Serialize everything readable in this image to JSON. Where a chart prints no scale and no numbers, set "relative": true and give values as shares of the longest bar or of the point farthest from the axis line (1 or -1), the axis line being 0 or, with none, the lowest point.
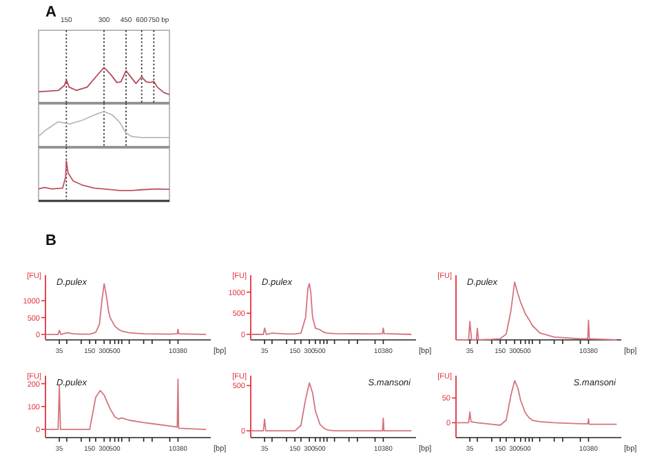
{
  "chart_data": [
    {
      "type": "line",
      "title": "A",
      "xlabel": "bp",
      "relative": true,
      "log": "x",
      "xlim": [
        90,
        1000
      ],
      "xticks": [
        150,
        300,
        450,
        600,
        750
      ],
      "tick_labels": "x",
      "x": [
        90,
        100,
        130,
        145,
        150,
        158,
        180,
        220,
        260,
        300,
        340,
        380,
        410,
        450,
        500,
        540,
        600,
        650,
        700,
        750,
        800,
        900,
        1000
      ],
      "series": [
        {
          "color": "#b5485a",
          "values": [
            0.32,
            0.33,
            0.36,
            0.5,
            0.65,
            0.45,
            0.36,
            0.45,
            0.75,
            1,
            0.8,
            0.58,
            0.6,
            0.91,
            0.7,
            0.55,
            0.74,
            0.6,
            0.58,
            0.61,
            0.45,
            0.3,
            0.24
          ]
        }
      ],
      "ref_lines": [
        {
          "axis": "x",
          "value": 150,
          "line_style": "dotted"
        },
        {
          "axis": "x",
          "value": 300,
          "line_style": "dotted"
        },
        {
          "axis": "x",
          "value": 450,
          "line_style": "dotted"
        },
        {
          "axis": "x",
          "value": 600,
          "line_style": "dotted"
        },
        {
          "axis": "x",
          "value": 750,
          "line_style": "dotted"
        }
      ]
    },
    {
      "type": "line",
      "relative": true,
      "log": "x",
      "xlim": [
        90,
        1000
      ],
      "tick_labels": false,
      "x": [
        90,
        100,
        129,
        160,
        200,
        250,
        300,
        350,
        400,
        450,
        500,
        600,
        800,
        1000
      ],
      "series": [
        {
          "color": "#b8b8b8",
          "values": [
            0.3,
            0.45,
            0.71,
            0.65,
            0.75,
            0.9,
            1,
            0.9,
            0.7,
            0.4,
            0.3,
            0.27,
            0.27,
            0.27
          ]
        }
      ],
      "ref_lines": [
        {
          "axis": "x",
          "value": 150,
          "line_style": "dotted"
        },
        {
          "axis": "x",
          "value": 300,
          "line_style": "dotted"
        },
        {
          "axis": "x",
          "value": 450,
          "line_style": "dotted"
        }
      ]
    },
    {
      "type": "line",
      "relative": true,
      "log": "x",
      "xlim": [
        90,
        1000
      ],
      "tick_labels": false,
      "x": [
        90,
        100,
        115,
        140,
        148,
        150,
        155,
        170,
        200,
        250,
        300,
        400,
        500,
        600,
        800,
        1000
      ],
      "series": [
        {
          "color": "#c05060",
          "values": [
            0.3,
            0.34,
            0.3,
            0.32,
            0.6,
            1,
            0.7,
            0.5,
            0.4,
            0.32,
            0.3,
            0.26,
            0.26,
            0.28,
            0.3,
            0.29
          ]
        }
      ],
      "ref_lines": [
        {
          "axis": "x",
          "value": 150,
          "line_style": "dotted"
        }
      ]
    },
    {
      "type": "line",
      "title": "B",
      "xlabel": "[bp]",
      "ylabel": "[FU]",
      "log": "x",
      "xlim": [
        18,
        50000
      ],
      "ylim": [
        -160,
        1750
      ],
      "yticks": [
        0,
        500,
        1000
      ],
      "xticks": [
        35,
        {
          "value": 50,
          "label": null
        },
        {
          "value": 100,
          "label": null
        },
        150,
        {
          "value": 200,
          "label": null
        },
        300,
        {
          "value": 400,
          "label": null
        },
        500,
        {
          "value": 600,
          "label": null
        },
        {
          "value": 700,
          "label": null
        },
        {
          "value": 1000,
          "label": null
        },
        {
          "value": 2000,
          "label": null
        },
        {
          "value": 3000,
          "label": null
        },
        {
          "value": 7000,
          "label": null
        },
        10380
      ],
      "x": [
        18,
        33,
        35,
        38,
        50,
        70,
        100,
        150,
        200,
        240,
        270,
        300,
        330,
        370,
        400,
        500,
        600,
        700,
        1000,
        2000,
        7000,
        10000,
        10380,
        10800,
        40000
      ],
      "series": [
        {
          "name": "D.pulex",
          "color": "#d4737d",
          "values": [
            0,
            0,
            120,
            0,
            50,
            20,
            10,
            10,
            60,
            300,
            1000,
            1500,
            1200,
            700,
            500,
            250,
            150,
            100,
            50,
            20,
            10,
            20,
            150,
            20,
            0
          ]
        }
      ]
    },
    {
      "type": "line",
      "xlabel": "[bp]",
      "ylabel": "[FU]",
      "log": "x",
      "xlim": [
        18,
        50000
      ],
      "ylim": [
        -130,
        1400
      ],
      "yticks": [
        0,
        500,
        1000
      ],
      "xticks": [
        35,
        {
          "value": 50,
          "label": null
        },
        {
          "value": 100,
          "label": null
        },
        150,
        {
          "value": 200,
          "label": null
        },
        300,
        {
          "value": 400,
          "label": null
        },
        500,
        {
          "value": 600,
          "label": null
        },
        {
          "value": 700,
          "label": null
        },
        {
          "value": 1000,
          "label": null
        },
        {
          "value": 2000,
          "label": null
        },
        {
          "value": 3000,
          "label": null
        },
        {
          "value": 7000,
          "label": null
        },
        10380
      ],
      "x": [
        18,
        33,
        35,
        38,
        50,
        100,
        150,
        200,
        250,
        280,
        300,
        320,
        350,
        400,
        450,
        500,
        600,
        700,
        1000,
        7000,
        10000,
        10380,
        10800,
        40000
      ],
      "series": [
        {
          "name": "D.pulex",
          "color": "#d4737d",
          "values": [
            0,
            0,
            150,
            0,
            30,
            10,
            10,
            30,
            400,
            1100,
            1200,
            1000,
            400,
            150,
            130,
            110,
            50,
            30,
            20,
            10,
            20,
            150,
            20,
            0
          ]
        }
      ]
    },
    {
      "type": "line",
      "xlabel": "[bp]",
      "ylabel": "[FU]",
      "relative": true,
      "log": "x",
      "xlim": [
        18,
        50000
      ],
      "xticks": [
        35,
        {
          "value": 50,
          "label": null
        },
        {
          "value": 100,
          "label": null
        },
        150,
        {
          "value": 200,
          "label": null
        },
        300,
        {
          "value": 400,
          "label": null
        },
        500,
        {
          "value": 600,
          "label": null
        },
        {
          "value": 700,
          "label": null
        },
        {
          "value": 1000,
          "label": null
        },
        {
          "value": 2000,
          "label": null
        },
        {
          "value": 3000,
          "label": null
        },
        {
          "value": 7000,
          "label": null
        },
        10380
      ],
      "x": [
        18,
        33,
        35,
        38,
        48,
        50,
        53,
        100,
        150,
        200,
        250,
        300,
        350,
        400,
        500,
        600,
        700,
        1000,
        2000,
        7000,
        10000,
        10380,
        10800,
        40000
      ],
      "series": [
        {
          "name": "D.pulex",
          "color": "#d4737d",
          "values": [
            0,
            0,
            0.32,
            0,
            0,
            0.2,
            0,
            0.01,
            0.02,
            0.1,
            0.5,
            1,
            0.8,
            0.65,
            0.45,
            0.35,
            0.25,
            0.12,
            0.05,
            0.02,
            0.02,
            0.34,
            0.02,
            0
          ]
        }
      ]
    },
    {
      "type": "line",
      "xlabel": "[bp]",
      "ylabel": "[FU]",
      "log": "x",
      "xlim": [
        18,
        50000
      ],
      "ylim": [
        -36,
        235
      ],
      "yticks": [
        0,
        100,
        200
      ],
      "xticks": [
        35,
        {
          "value": 50,
          "label": null
        },
        {
          "value": 100,
          "label": null
        },
        150,
        {
          "value": 200,
          "label": null
        },
        300,
        {
          "value": 400,
          "label": null
        },
        500,
        {
          "value": 600,
          "label": null
        },
        {
          "value": 700,
          "label": null
        },
        {
          "value": 1000,
          "label": null
        },
        {
          "value": 2000,
          "label": null
        },
        {
          "value": 3000,
          "label": null
        },
        {
          "value": 7000,
          "label": null
        },
        10380
      ],
      "x": [
        18,
        33,
        35,
        37,
        100,
        150,
        170,
        200,
        250,
        300,
        400,
        500,
        600,
        700,
        1000,
        2000,
        3000,
        7000,
        10000,
        10380,
        10700,
        40000
      ],
      "series": [
        {
          "name": "D.pulex",
          "color": "#d4737d",
          "values": [
            0,
            0,
            190,
            0,
            0,
            0,
            60,
            140,
            170,
            150,
            90,
            55,
            45,
            50,
            40,
            30,
            25,
            15,
            10,
            220,
            5,
            0
          ]
        }
      ]
    },
    {
      "type": "line",
      "xlabel": "[bp]",
      "ylabel": "[FU]",
      "log": "x",
      "xlim": [
        18,
        50000
      ],
      "ylim": [
        -75,
        610
      ],
      "yticks": [
        0,
        500
      ],
      "xticks": [
        35,
        {
          "value": 50,
          "label": null
        },
        {
          "value": 100,
          "label": null
        },
        150,
        {
          "value": 200,
          "label": null
        },
        300,
        {
          "value": 400,
          "label": null
        },
        500,
        {
          "value": 600,
          "label": null
        },
        {
          "value": 700,
          "label": null
        },
        {
          "value": 1000,
          "label": null
        },
        {
          "value": 2000,
          "label": null
        },
        {
          "value": 3000,
          "label": null
        },
        {
          "value": 7000,
          "label": null
        },
        10380
      ],
      "x": [
        18,
        33,
        35,
        37,
        100,
        150,
        200,
        250,
        300,
        350,
        400,
        500,
        600,
        700,
        1000,
        7000,
        10000,
        10380,
        10700,
        40000
      ],
      "series": [
        {
          "name": "S.mansoni",
          "color": "#d4737d",
          "values": [
            0,
            0,
            130,
            0,
            0,
            0,
            60,
            350,
            530,
            420,
            220,
            70,
            30,
            10,
            0,
            0,
            0,
            140,
            0,
            0
          ]
        }
      ]
    },
    {
      "type": "line",
      "xlabel": "[bp]",
      "ylabel": "[FU]",
      "log": "x",
      "xlim": [
        18,
        50000
      ],
      "ylim": [
        -30,
        95
      ],
      "yticks": [
        0,
        50
      ],
      "xticks": [
        35,
        {
          "value": 50,
          "label": null
        },
        {
          "value": 100,
          "label": null
        },
        150,
        {
          "value": 200,
          "label": null
        },
        300,
        {
          "value": 400,
          "label": null
        },
        500,
        {
          "value": 600,
          "label": null
        },
        {
          "value": 700,
          "label": null
        },
        {
          "value": 1000,
          "label": null
        },
        {
          "value": 2000,
          "label": null
        },
        {
          "value": 3000,
          "label": null
        },
        {
          "value": 7000,
          "label": null
        },
        10380
      ],
      "x": [
        18,
        33,
        35,
        37,
        50,
        100,
        150,
        200,
        250,
        300,
        350,
        400,
        500,
        600,
        700,
        1000,
        2000,
        7000,
        10000,
        10380,
        10700,
        40000
      ],
      "series": [
        {
          "name": "S.mansoni",
          "color": "#d4737d",
          "values": [
            0,
            0,
            22,
            2,
            0,
            -3,
            -5,
            5,
            55,
            85,
            70,
            45,
            20,
            10,
            5,
            2,
            0,
            -2,
            -2,
            8,
            -3,
            -3
          ]
        }
      ]
    }
  ]
}
